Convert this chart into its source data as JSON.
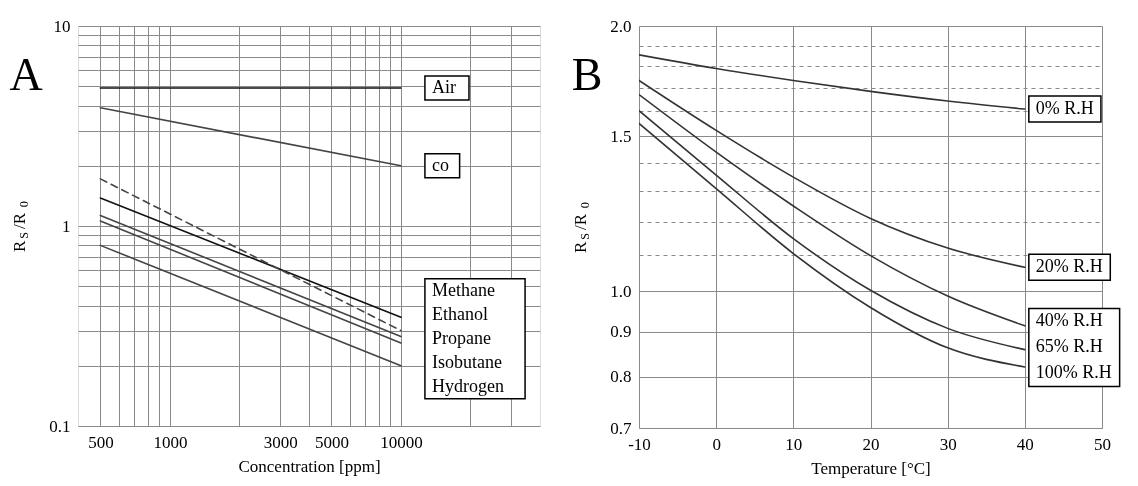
{
  "chart_data": [
    {
      "type": "line",
      "title": "A",
      "xlabel": "Concentration [ppm]",
      "ylabel": "R$_{S}$/R$_{0}$",
      "log": "xy",
      "grid": true,
      "x": [
        500,
        10000
      ],
      "xlim": [
        400,
        40000
      ],
      "xticks": [
        500,
        {
          "value": 600,
          "label": null
        },
        {
          "value": 700,
          "label": null
        },
        {
          "value": 800,
          "label": null
        },
        {
          "value": 900,
          "label": null
        },
        1000,
        {
          "value": 2000,
          "label": null
        },
        3000,
        {
          "value": 4000,
          "label": null
        },
        5000,
        {
          "value": 6000,
          "label": null
        },
        {
          "value": 7000,
          "label": null
        },
        {
          "value": 8000,
          "label": null
        },
        {
          "value": 9000,
          "label": null
        },
        10000,
        {
          "value": 20000,
          "label": null
        },
        {
          "value": 30000,
          "label": null
        }
      ],
      "ylim": [
        0.1,
        10
      ],
      "yticks": [
        0.1,
        {
          "value": 0.2,
          "label": null
        },
        {
          "value": 0.3,
          "label": null
        },
        {
          "value": 0.4,
          "label": null
        },
        {
          "value": 0.5,
          "label": null
        },
        {
          "value": 0.6,
          "label": null
        },
        {
          "value": 0.7,
          "label": null
        },
        {
          "value": 0.8,
          "label": null
        },
        {
          "value": 0.9,
          "label": null
        },
        1,
        {
          "value": 2,
          "label": null
        },
        {
          "value": 3,
          "label": null
        },
        {
          "value": 4,
          "label": null
        },
        {
          "value": 5,
          "label": null
        },
        {
          "value": 6,
          "label": null
        },
        {
          "value": 7,
          "label": null
        },
        {
          "value": 8,
          "label": null
        },
        {
          "value": 9,
          "label": null
        },
        10
      ],
      "series": [
        {
          "name": "Air",
          "color": "#111111",
          "values": [
            4.9,
            4.9
          ]
        },
        {
          "name": "co",
          "color": "#444444",
          "values": [
            3.9,
            2.0
          ]
        },
        {
          "name": "Methane",
          "color": "#111111",
          "values": [
            1.38,
            0.35
          ]
        },
        {
          "name": "Ethanol",
          "color": "#444444",
          "line_style": "dashed",
          "values": [
            1.72,
            0.3
          ]
        },
        {
          "name": "Propane",
          "color": "#444444",
          "values": [
            1.13,
            0.28
          ]
        },
        {
          "name": "Isobutane",
          "color": "#444444",
          "values": [
            1.06,
            0.26
          ]
        },
        {
          "name": "Hydrogen",
          "color": "#444444",
          "values": [
            0.8,
            0.2
          ]
        }
      ]
    },
    {
      "type": "line",
      "title": "B",
      "xlabel": "Temperature [°C]",
      "ylabel": "R$_{S}$/R$_{0}$",
      "log": "y",
      "grid": true,
      "x": [
        -10,
        0,
        10,
        20,
        30,
        40
      ],
      "xlim": [
        -10,
        50
      ],
      "xticks": [
        -10,
        0,
        10,
        20,
        30,
        40,
        50
      ],
      "ylim": [
        0.7,
        2.0
      ],
      "yticks": [
        {
          "value": 0.7,
          "label": "0.7"
        },
        {
          "value": 0.8,
          "label": "0.8"
        },
        {
          "value": 0.9,
          "label": "0.9"
        },
        {
          "value": 1,
          "label": "1.0"
        },
        {
          "value": 1.1,
          "label": null
        },
        {
          "value": 1.2,
          "label": null
        },
        {
          "value": 1.3,
          "label": null
        },
        {
          "value": 1.4,
          "label": null
        },
        {
          "value": 1.5,
          "label": "1.5"
        },
        {
          "value": 1.6,
          "label": null
        },
        {
          "value": 1.7,
          "label": null
        },
        {
          "value": 1.8,
          "label": null
        },
        {
          "value": 1.9,
          "label": null
        },
        {
          "value": 2,
          "label": "2.0"
        }
      ],
      "series": [
        {
          "name": "0% R.H",
          "color": "#333333",
          "values": [
            1.855,
            1.79,
            1.735,
            1.686,
            1.644,
            1.61
          ]
        },
        {
          "name": "20% R.H",
          "color": "#333333",
          "values": [
            1.735,
            1.523,
            1.348,
            1.21,
            1.12,
            1.065
          ]
        },
        {
          "name": "40% R.H",
          "color": "#333333",
          "values": [
            1.672,
            1.439,
            1.25,
            1.098,
            0.988,
            0.914
          ]
        },
        {
          "name": "65% R.H",
          "color": "#333333",
          "values": [
            1.603,
            1.355,
            1.148,
            1.003,
            0.908,
            0.859
          ]
        },
        {
          "name": "100% R.H",
          "color": "#333333",
          "values": [
            1.551,
            1.308,
            1.104,
            0.959,
            0.863,
            0.821
          ]
        }
      ]
    }
  ]
}
